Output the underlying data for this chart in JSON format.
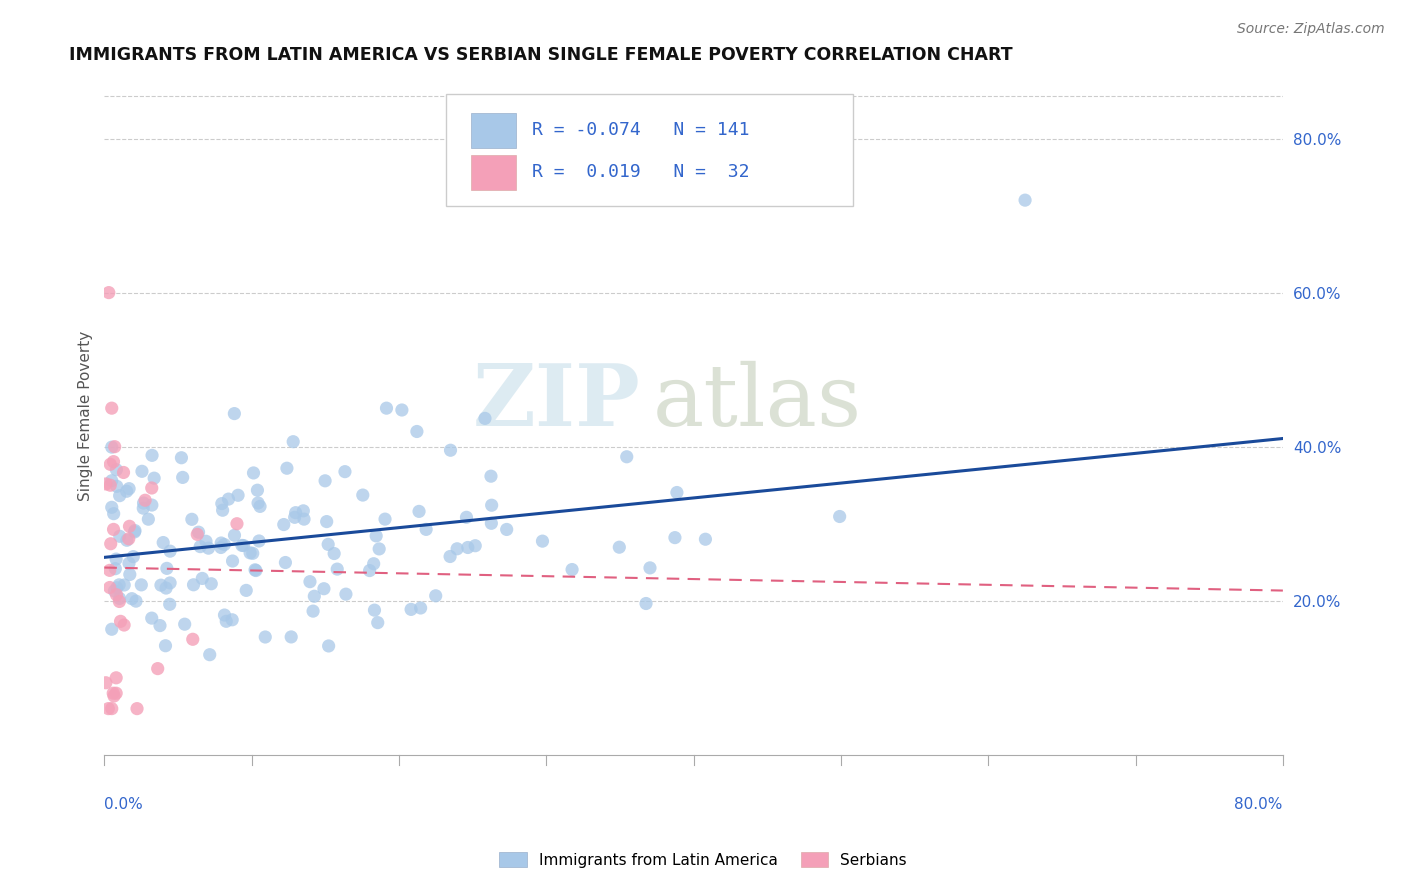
{
  "title": "IMMIGRANTS FROM LATIN AMERICA VS SERBIAN SINGLE FEMALE POVERTY CORRELATION CHART",
  "source": "Source: ZipAtlas.com",
  "legend_label1": "Immigrants from Latin America",
  "legend_label2": "Serbians",
  "r1": -0.074,
  "n1": 141,
  "r2": 0.019,
  "n2": 32,
  "color1": "#a8c8e8",
  "color2": "#f4a0b8",
  "trendline1_color": "#1a4a9a",
  "trendline2_color": "#e06080",
  "watermark_zip": "ZIP",
  "watermark_atlas": "atlas",
  "xlim": [
    0.0,
    0.8
  ],
  "ylim": [
    0.0,
    0.88
  ],
  "right_ytick_vals": [
    0.2,
    0.4,
    0.6,
    0.8
  ],
  "right_yticklabels": [
    "20.0%",
    "40.0%",
    "60.0%",
    "80.0%"
  ],
  "ylabel": "Single Female Poverty",
  "background_color": "#ffffff",
  "grid_color": "#cccccc",
  "title_color": "#111111",
  "axis_label_color": "#555555",
  "tick_label_color": "#3366cc"
}
